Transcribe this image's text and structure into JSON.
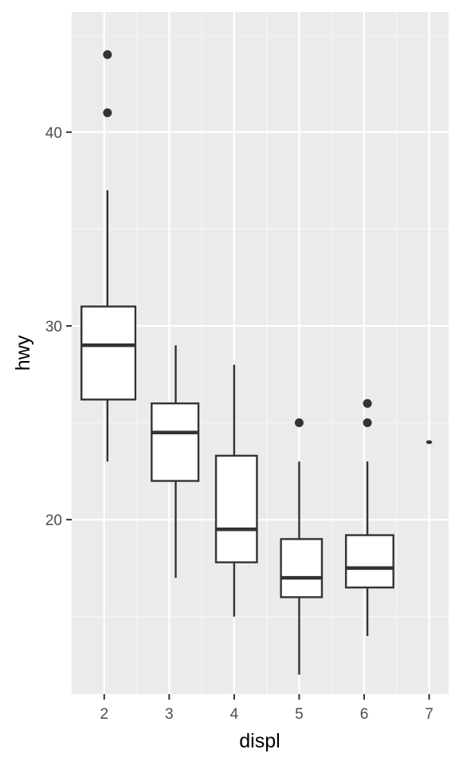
{
  "chart_data": {
    "type": "boxplot",
    "title": "",
    "xlabel": "displ",
    "ylabel": "hwy",
    "xlim": [
      1.5,
      7.3
    ],
    "ylim": [
      11,
      46.2
    ],
    "x_ticks": [
      2,
      3,
      4,
      5,
      6,
      7
    ],
    "y_ticks": [
      20,
      30,
      40
    ],
    "grid": true,
    "legend": "none",
    "colors": {
      "panel": "#ebebeb",
      "grid_major": "#ffffff",
      "grid_minor": "#f5f5f5",
      "box_fill": "#ffffff",
      "stroke": "#333333",
      "tick_text": "#4d4d4d",
      "title_text": "#000000"
    },
    "boxes": [
      {
        "x": 2.05,
        "x_range": [
          1.65,
          2.48
        ],
        "whisker_low": 23,
        "q1": 26.2,
        "median": 29,
        "q3": 31,
        "whisker_high": 37,
        "outliers": [
          41,
          44
        ]
      },
      {
        "x": 3.1,
        "x_range": [
          2.73,
          3.45
        ],
        "whisker_low": 17,
        "q1": 22,
        "median": 24.5,
        "q3": 26,
        "whisker_high": 29,
        "outliers": []
      },
      {
        "x": 4.0,
        "x_range": [
          3.72,
          4.35
        ],
        "whisker_low": 15,
        "q1": 17.8,
        "median": 19.5,
        "q3": 23.3,
        "whisker_high": 28,
        "outliers": []
      },
      {
        "x": 5.0,
        "x_range": [
          4.72,
          5.35
        ],
        "whisker_low": 12,
        "q1": 16,
        "median": 17,
        "q3": 19,
        "whisker_high": 23,
        "outliers": [
          25
        ]
      },
      {
        "x": 6.05,
        "x_range": [
          5.72,
          6.45
        ],
        "whisker_low": 14,
        "q1": 16.5,
        "median": 17.5,
        "q3": 19.2,
        "whisker_high": 23,
        "outliers": [
          25,
          26
        ]
      },
      {
        "x": 7.0,
        "x_range": [
          6.97,
          7.03
        ],
        "whisker_low": 24,
        "q1": 24,
        "median": 24,
        "q3": 24,
        "whisker_high": 24,
        "outliers": []
      }
    ]
  }
}
